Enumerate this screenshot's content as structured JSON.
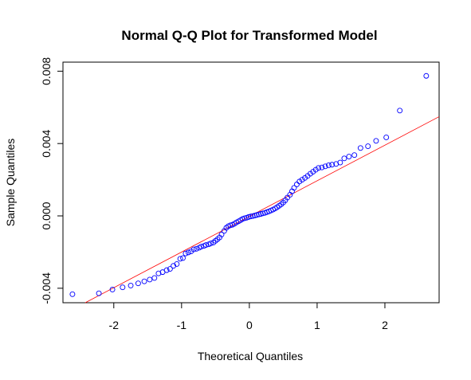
{
  "chart_data": {
    "type": "scatter",
    "title": "Normal Q-Q Plot for Transformed Model",
    "xlabel": "Theoretical Quantiles",
    "ylabel": "Sample Quantiles",
    "xlim": [
      -2.75,
      2.8
    ],
    "ylim": [
      -0.0048,
      0.0085
    ],
    "x_ticks": [
      -2,
      -1,
      0,
      1,
      2
    ],
    "x_tick_labels": [
      "-2",
      "-1",
      "0",
      "1",
      "2"
    ],
    "y_ticks": [
      -0.004,
      0.0,
      0.004,
      0.008
    ],
    "y_tick_labels": [
      "-0.004",
      "0.000",
      "0.004",
      "0.008"
    ],
    "point_color": "#0000ff",
    "line_color": "#ff0000",
    "reference_line": {
      "slope": 0.00197,
      "intercept": -3e-05
    },
    "points": [
      [
        -2.61,
        -0.00433
      ],
      [
        -2.22,
        -0.00428
      ],
      [
        -2.02,
        -0.00407
      ],
      [
        -1.87,
        -0.00395
      ],
      [
        -1.75,
        -0.00385
      ],
      [
        -1.64,
        -0.00373
      ],
      [
        -1.55,
        -0.00362
      ],
      [
        -1.47,
        -0.00352
      ],
      [
        -1.4,
        -0.00343
      ],
      [
        -1.34,
        -0.00318
      ],
      [
        -1.28,
        -0.00311
      ],
      [
        -1.22,
        -0.003
      ],
      [
        -1.17,
        -0.00293
      ],
      [
        -1.12,
        -0.00276
      ],
      [
        -1.07,
        -0.00266
      ],
      [
        -1.02,
        -0.00237
      ],
      [
        -0.98,
        -0.00233
      ],
      [
        -0.94,
        -0.00208
      ],
      [
        -0.9,
        -0.00202
      ],
      [
        -0.86,
        -0.00196
      ],
      [
        -0.82,
        -0.00185
      ],
      [
        -0.78,
        -0.00182
      ],
      [
        -0.74,
        -0.00176
      ],
      [
        -0.71,
        -0.0017
      ],
      [
        -0.67,
        -0.00166
      ],
      [
        -0.64,
        -0.00161
      ],
      [
        -0.6,
        -0.00157
      ],
      [
        -0.57,
        -0.00152
      ],
      [
        -0.53,
        -0.00147
      ],
      [
        -0.5,
        -0.00138
      ],
      [
        -0.47,
        -0.00129
      ],
      [
        -0.44,
        -0.00119
      ],
      [
        -0.41,
        -0.00103
      ],
      [
        -0.37,
        -0.00083
      ],
      [
        -0.34,
        -0.00066
      ],
      [
        -0.31,
        -0.00057
      ],
      [
        -0.28,
        -0.00052
      ],
      [
        -0.25,
        -0.00049
      ],
      [
        -0.22,
        -0.00043
      ],
      [
        -0.19,
        -0.00036
      ],
      [
        -0.16,
        -0.0003
      ],
      [
        -0.13,
        -0.00024
      ],
      [
        -0.1,
        -0.00017
      ],
      [
        -0.07,
        -0.00013
      ],
      [
        -0.04,
        -0.0001
      ],
      [
        -0.01,
        -6e-05
      ],
      [
        0.02,
        -3e-05
      ],
      [
        0.05,
        -1e-05
      ],
      [
        0.08,
        2e-05
      ],
      [
        0.11,
        5e-05
      ],
      [
        0.14,
        8e-05
      ],
      [
        0.17,
        0.00011
      ],
      [
        0.2,
        0.00014
      ],
      [
        0.23,
        0.00017
      ],
      [
        0.26,
        0.00021
      ],
      [
        0.29,
        0.00025
      ],
      [
        0.32,
        0.0003
      ],
      [
        0.35,
        0.00035
      ],
      [
        0.38,
        0.00041
      ],
      [
        0.41,
        0.00048
      ],
      [
        0.44,
        0.00056
      ],
      [
        0.47,
        0.00064
      ],
      [
        0.5,
        0.00074
      ],
      [
        0.53,
        0.00086
      ],
      [
        0.56,
        0.00101
      ],
      [
        0.6,
        0.00117
      ],
      [
        0.63,
        0.00136
      ],
      [
        0.66,
        0.00155
      ],
      [
        0.7,
        0.00174
      ],
      [
        0.74,
        0.0019
      ],
      [
        0.78,
        0.002
      ],
      [
        0.82,
        0.0021
      ],
      [
        0.86,
        0.00221
      ],
      [
        0.9,
        0.00233
      ],
      [
        0.94,
        0.00244
      ],
      [
        0.98,
        0.00255
      ],
      [
        1.02,
        0.00265
      ],
      [
        1.07,
        0.00268
      ],
      [
        1.12,
        0.00274
      ],
      [
        1.17,
        0.0028
      ],
      [
        1.22,
        0.00283
      ],
      [
        1.28,
        0.00287
      ],
      [
        1.34,
        0.00295
      ],
      [
        1.4,
        0.00318
      ],
      [
        1.47,
        0.00328
      ],
      [
        1.55,
        0.00336
      ],
      [
        1.64,
        0.00375
      ],
      [
        1.75,
        0.00385
      ],
      [
        1.87,
        0.00415
      ],
      [
        2.02,
        0.00434
      ],
      [
        2.22,
        0.00582
      ],
      [
        2.61,
        0.00774
      ]
    ]
  }
}
